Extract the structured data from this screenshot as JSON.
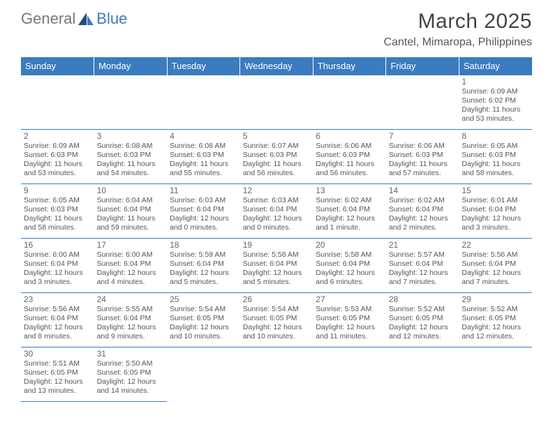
{
  "logo": {
    "gray": "General",
    "blue": "Blue"
  },
  "title": "March 2025",
  "location": "Cantel, Mimaropa, Philippines",
  "header_bg": "#3b7bbf",
  "header_fg": "#ffffff",
  "border_color": "#3b7bbf",
  "day_headers": [
    "Sunday",
    "Monday",
    "Tuesday",
    "Wednesday",
    "Thursday",
    "Friday",
    "Saturday"
  ],
  "weeks": [
    [
      null,
      null,
      null,
      null,
      null,
      null,
      {
        "n": "1",
        "sr": "6:09 AM",
        "ss": "6:02 PM",
        "dl": "11 hours and 53 minutes."
      }
    ],
    [
      {
        "n": "2",
        "sr": "6:09 AM",
        "ss": "6:03 PM",
        "dl": "11 hours and 53 minutes."
      },
      {
        "n": "3",
        "sr": "6:08 AM",
        "ss": "6:03 PM",
        "dl": "11 hours and 54 minutes."
      },
      {
        "n": "4",
        "sr": "6:08 AM",
        "ss": "6:03 PM",
        "dl": "11 hours and 55 minutes."
      },
      {
        "n": "5",
        "sr": "6:07 AM",
        "ss": "6:03 PM",
        "dl": "11 hours and 56 minutes."
      },
      {
        "n": "6",
        "sr": "6:06 AM",
        "ss": "6:03 PM",
        "dl": "11 hours and 56 minutes."
      },
      {
        "n": "7",
        "sr": "6:06 AM",
        "ss": "6:03 PM",
        "dl": "11 hours and 57 minutes."
      },
      {
        "n": "8",
        "sr": "6:05 AM",
        "ss": "6:03 PM",
        "dl": "11 hours and 58 minutes."
      }
    ],
    [
      {
        "n": "9",
        "sr": "6:05 AM",
        "ss": "6:03 PM",
        "dl": "11 hours and 58 minutes."
      },
      {
        "n": "10",
        "sr": "6:04 AM",
        "ss": "6:04 PM",
        "dl": "11 hours and 59 minutes."
      },
      {
        "n": "11",
        "sr": "6:03 AM",
        "ss": "6:04 PM",
        "dl": "12 hours and 0 minutes."
      },
      {
        "n": "12",
        "sr": "6:03 AM",
        "ss": "6:04 PM",
        "dl": "12 hours and 0 minutes."
      },
      {
        "n": "13",
        "sr": "6:02 AM",
        "ss": "6:04 PM",
        "dl": "12 hours and 1 minute."
      },
      {
        "n": "14",
        "sr": "6:02 AM",
        "ss": "6:04 PM",
        "dl": "12 hours and 2 minutes."
      },
      {
        "n": "15",
        "sr": "6:01 AM",
        "ss": "6:04 PM",
        "dl": "12 hours and 3 minutes."
      }
    ],
    [
      {
        "n": "16",
        "sr": "6:00 AM",
        "ss": "6:04 PM",
        "dl": "12 hours and 3 minutes."
      },
      {
        "n": "17",
        "sr": "6:00 AM",
        "ss": "6:04 PM",
        "dl": "12 hours and 4 minutes."
      },
      {
        "n": "18",
        "sr": "5:59 AM",
        "ss": "6:04 PM",
        "dl": "12 hours and 5 minutes."
      },
      {
        "n": "19",
        "sr": "5:58 AM",
        "ss": "6:04 PM",
        "dl": "12 hours and 5 minutes."
      },
      {
        "n": "20",
        "sr": "5:58 AM",
        "ss": "6:04 PM",
        "dl": "12 hours and 6 minutes."
      },
      {
        "n": "21",
        "sr": "5:57 AM",
        "ss": "6:04 PM",
        "dl": "12 hours and 7 minutes."
      },
      {
        "n": "22",
        "sr": "5:56 AM",
        "ss": "6:04 PM",
        "dl": "12 hours and 7 minutes."
      }
    ],
    [
      {
        "n": "23",
        "sr": "5:56 AM",
        "ss": "6:04 PM",
        "dl": "12 hours and 8 minutes."
      },
      {
        "n": "24",
        "sr": "5:55 AM",
        "ss": "6:04 PM",
        "dl": "12 hours and 9 minutes."
      },
      {
        "n": "25",
        "sr": "5:54 AM",
        "ss": "6:05 PM",
        "dl": "12 hours and 10 minutes."
      },
      {
        "n": "26",
        "sr": "5:54 AM",
        "ss": "6:05 PM",
        "dl": "12 hours and 10 minutes."
      },
      {
        "n": "27",
        "sr": "5:53 AM",
        "ss": "6:05 PM",
        "dl": "12 hours and 11 minutes."
      },
      {
        "n": "28",
        "sr": "5:52 AM",
        "ss": "6:05 PM",
        "dl": "12 hours and 12 minutes."
      },
      {
        "n": "29",
        "sr": "5:52 AM",
        "ss": "6:05 PM",
        "dl": "12 hours and 12 minutes."
      }
    ],
    [
      {
        "n": "30",
        "sr": "5:51 AM",
        "ss": "6:05 PM",
        "dl": "12 hours and 13 minutes."
      },
      {
        "n": "31",
        "sr": "5:50 AM",
        "ss": "6:05 PM",
        "dl": "12 hours and 14 minutes."
      },
      null,
      null,
      null,
      null,
      null
    ]
  ],
  "labels": {
    "sunrise": "Sunrise:",
    "sunset": "Sunset:",
    "daylight": "Daylight:"
  }
}
